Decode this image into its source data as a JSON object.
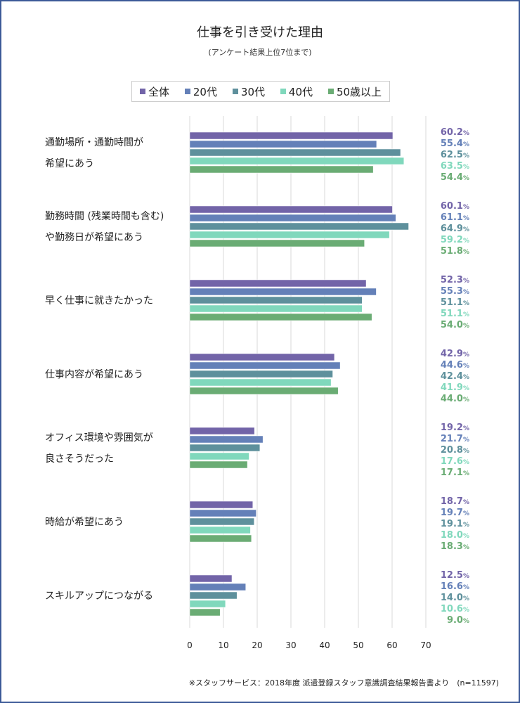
{
  "chart_data": {
    "type": "bar",
    "orientation": "horizontal",
    "title": "仕事を引き受けた理由",
    "subtitle": "(アンケート結果上位7位まで)",
    "categories": [
      [
        "通勤場所・通勤時間が",
        "希望にあう"
      ],
      [
        "勤務時間 (残業時間も含む)",
        "や勤務日が希望にあう"
      ],
      [
        "早く仕事に就きたかった"
      ],
      [
        "仕事内容が希望にあう"
      ],
      [
        "オフィス環境や雰囲気が",
        "良さそうだった"
      ],
      [
        "時給が希望にあう"
      ],
      [
        "スキルアップにつながる"
      ]
    ],
    "series": [
      {
        "name": "全体",
        "color": "#7264a8",
        "values": [
          60.2,
          60.1,
          52.3,
          42.9,
          19.2,
          18.7,
          12.5
        ]
      },
      {
        "name": "20代",
        "color": "#6480b8",
        "values": [
          55.4,
          61.1,
          55.3,
          44.6,
          21.7,
          19.7,
          16.6
        ]
      },
      {
        "name": "30代",
        "color": "#5e909c",
        "values": [
          62.5,
          64.9,
          51.1,
          42.4,
          20.8,
          19.1,
          14.0
        ]
      },
      {
        "name": "40代",
        "color": "#80d8bc",
        "values": [
          63.5,
          59.2,
          51.1,
          41.9,
          17.6,
          18.0,
          10.6
        ]
      },
      {
        "name": "50歳以上",
        "color": "#6aac74",
        "values": [
          54.4,
          51.8,
          54.0,
          44.0,
          17.1,
          18.3,
          9.0
        ]
      }
    ],
    "value_suffix": "%",
    "xlim": [
      0,
      70
    ],
    "xticks": [
      "0",
      "10",
      "20",
      "30",
      "40",
      "50",
      "60",
      "70"
    ],
    "grid": true,
    "legend_position": "top"
  },
  "source": "※スタッフサービス：2018年度 派遣登録スタッフ意識調査結果報告書より　(n=11597)"
}
